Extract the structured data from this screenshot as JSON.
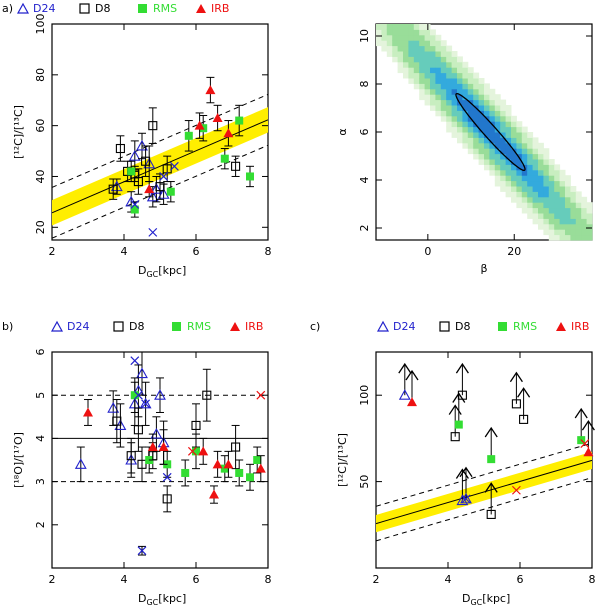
{
  "colors": {
    "d24": "#2222cc",
    "d8": "#000000",
    "rms": "#33dd33",
    "irb": "#ee1111",
    "band": "#ffee00",
    "frame": "#000000"
  },
  "legend": [
    {
      "key": "d24",
      "symbol": "triangle-open",
      "label": "D24"
    },
    {
      "key": "d8",
      "symbol": "square-open",
      "label": "D8"
    },
    {
      "key": "rms",
      "symbol": "square-filled",
      "label": "RMS"
    },
    {
      "key": "irb",
      "symbol": "triangle-filled",
      "label": "IRB"
    }
  ],
  "chart_data": [
    {
      "id": "a",
      "panel_label": "a)",
      "type": "scatter",
      "xlabel_main": "D",
      "xlabel_sub": "GC",
      "xlabel_unit": "[kpc]",
      "ylabel": "[¹²C]/[¹³C]",
      "xlim": [
        2,
        8
      ],
      "ylim": [
        15,
        100
      ],
      "xticks": [
        2,
        4,
        6,
        8
      ],
      "yticks": [
        20,
        40,
        60,
        80,
        100
      ],
      "fit": {
        "slope": 6.1,
        "intercept": 13.5,
        "band": 5,
        "dash": 10
      },
      "series": [
        {
          "name": "D24",
          "key": "d24",
          "symbol": "triangle-open",
          "points": [
            [
              3.8,
              36,
              3
            ],
            [
              4.2,
              30,
              4
            ],
            [
              4.3,
              48,
              6
            ],
            [
              4.5,
              52,
              5
            ],
            [
              4.7,
              45,
              7
            ],
            [
              4.8,
              32,
              4
            ],
            [
              4.9,
              35,
              5
            ],
            [
              5.1,
              33,
              4
            ]
          ]
        },
        {
          "name": "D8",
          "key": "d8",
          "symbol": "square-open",
          "points": [
            [
              3.7,
              35,
              4
            ],
            [
              3.9,
              51,
              5
            ],
            [
              4.1,
              42,
              4
            ],
            [
              4.3,
              41,
              3
            ],
            [
              4.4,
              38,
              5
            ],
            [
              4.6,
              46,
              6
            ],
            [
              4.8,
              60,
              7
            ],
            [
              5.0,
              36,
              5
            ],
            [
              5.2,
              43,
              5
            ],
            [
              7.1,
              44,
              4
            ]
          ]
        },
        {
          "name": "RMS",
          "key": "rms",
          "symbol": "square-filled",
          "points": [
            [
              4.2,
              42,
              4
            ],
            [
              4.3,
              27,
              3
            ],
            [
              5.3,
              34,
              4
            ],
            [
              5.8,
              56,
              6
            ],
            [
              6.2,
              59,
              5
            ],
            [
              6.8,
              47,
              4
            ],
            [
              7.2,
              62,
              6
            ],
            [
              7.5,
              40,
              4
            ]
          ]
        },
        {
          "name": "IRB",
          "key": "irb",
          "symbol": "triangle-filled",
          "points": [
            [
              4.7,
              35,
              3
            ],
            [
              6.1,
              60,
              5
            ],
            [
              6.4,
              74,
              5
            ],
            [
              6.6,
              63,
              5
            ],
            [
              6.9,
              57,
              5
            ]
          ]
        },
        {
          "name": "D24-cross",
          "key": "d24",
          "symbol": "x",
          "points": [
            [
              4.3,
              29,
              0
            ],
            [
              4.8,
              18,
              0
            ],
            [
              5.1,
              40,
              0
            ],
            [
              5.4,
              44,
              0
            ]
          ]
        }
      ]
    },
    {
      "id": "b",
      "panel_label": "b)",
      "type": "scatter",
      "xlabel_main": "D",
      "xlabel_sub": "GC",
      "xlabel_unit": "[kpc]",
      "ylabel": "[¹⁸O]/[¹⁷O]",
      "xlim": [
        2,
        8
      ],
      "ylim": [
        1,
        6
      ],
      "xticks": [
        2,
        4,
        6,
        8
      ],
      "yticks": [
        2,
        3,
        4,
        5,
        6
      ],
      "hlines": {
        "solid": 4,
        "dashed": [
          3,
          5
        ]
      },
      "series": [
        {
          "name": "D24",
          "key": "d24",
          "symbol": "triangle-open",
          "points": [
            [
              2.8,
              3.4,
              0.4
            ],
            [
              3.7,
              4.7,
              0.4
            ],
            [
              3.9,
              4.3,
              0.5
            ],
            [
              4.2,
              3.5,
              0.4
            ],
            [
              4.3,
              4.8,
              0.5
            ],
            [
              4.4,
              5.1,
              0.6
            ],
            [
              4.5,
              5.5,
              0.5
            ],
            [
              4.6,
              4.8,
              0.5
            ],
            [
              4.9,
              4.1,
              0.4
            ],
            [
              5.0,
              5.0,
              0.4
            ],
            [
              5.1,
              3.9,
              0.5
            ]
          ]
        },
        {
          "name": "D8",
          "key": "d8",
          "symbol": "square-open",
          "points": [
            [
              3.8,
              4.4,
              0.5
            ],
            [
              4.2,
              3.6,
              0.4
            ],
            [
              4.4,
              4.2,
              0.5
            ],
            [
              4.5,
              3.4,
              0.4
            ],
            [
              4.8,
              3.6,
              0.3
            ],
            [
              5.2,
              2.6,
              0.3
            ],
            [
              6.0,
              4.3,
              0.5
            ],
            [
              6.3,
              5.0,
              0.6
            ],
            [
              7.1,
              3.8,
              0.5
            ]
          ]
        },
        {
          "name": "RMS",
          "key": "rms",
          "symbol": "square-filled",
          "points": [
            [
              4.3,
              5.0,
              0.4
            ],
            [
              4.7,
              3.5,
              0.3
            ],
            [
              5.2,
              3.4,
              0.3
            ],
            [
              5.7,
              3.2,
              0.3
            ],
            [
              6.0,
              3.7,
              0.4
            ],
            [
              6.8,
              3.3,
              0.3
            ],
            [
              7.2,
              3.2,
              0.3
            ],
            [
              7.5,
              3.1,
              0.3
            ],
            [
              7.7,
              3.5,
              0.3
            ]
          ]
        },
        {
          "name": "IRB",
          "key": "irb",
          "symbol": "triangle-filled",
          "points": [
            [
              3.0,
              4.6,
              0.3
            ],
            [
              4.8,
              3.8,
              0.3
            ],
            [
              5.1,
              3.8,
              0.4
            ],
            [
              6.2,
              3.7,
              0.3
            ],
            [
              6.5,
              2.7,
              0.2
            ],
            [
              6.6,
              3.4,
              0.3
            ],
            [
              6.9,
              3.4,
              0.3
            ],
            [
              7.8,
              3.3,
              0.3
            ]
          ]
        },
        {
          "name": "D24-cross",
          "key": "d24",
          "symbol": "x",
          "points": [
            [
              4.3,
              5.8,
              0
            ],
            [
              4.4,
              5.0,
              0
            ],
            [
              4.6,
              4.8,
              0
            ],
            [
              4.5,
              1.4,
              0.1
            ],
            [
              5.2,
              3.1,
              0
            ]
          ]
        },
        {
          "name": "IRB-cross",
          "key": "irb",
          "symbol": "x",
          "points": [
            [
              5.9,
              3.7,
              0
            ],
            [
              7.8,
              5.0,
              0
            ]
          ]
        }
      ]
    },
    {
      "id": "c",
      "panel_label": "c)",
      "type": "scatter",
      "xlabel_main": "D",
      "xlabel_sub": "GC",
      "xlabel_unit": "[kpc]",
      "ylabel": "[¹²C]/[¹³C]",
      "xlim": [
        2,
        8
      ],
      "ylim": [
        0,
        125
      ],
      "xticks": [
        2,
        4,
        6,
        8
      ],
      "yticks": [
        50,
        100
      ],
      "fit": {
        "slope": 6.1,
        "intercept": 13.5,
        "band": 5,
        "dash": 10
      },
      "lower_limit_arrow": 18,
      "series": [
        {
          "name": "D24",
          "key": "d24",
          "symbol": "triangle-open",
          "points": [
            [
              2.8,
              100,
              0
            ],
            [
              4.4,
              39,
              0
            ],
            [
              4.5,
              40,
              0
            ]
          ],
          "lower_limits": true
        },
        {
          "name": "D8",
          "key": "d8",
          "symbol": "square-open",
          "points": [
            [
              4.2,
              76,
              0
            ],
            [
              4.4,
              100,
              0
            ],
            [
              5.2,
              31,
              0
            ],
            [
              5.9,
              95,
              0
            ],
            [
              6.1,
              86,
              0
            ]
          ],
          "lower_limits": true
        },
        {
          "name": "RMS",
          "key": "rms",
          "symbol": "square-filled",
          "points": [
            [
              4.3,
              83,
              0
            ],
            [
              5.2,
              63,
              0
            ],
            [
              7.7,
              74,
              0
            ]
          ],
          "lower_limits": true
        },
        {
          "name": "IRB",
          "key": "irb",
          "symbol": "triangle-filled",
          "points": [
            [
              3.0,
              96,
              0
            ],
            [
              7.9,
              67,
              0
            ]
          ],
          "lower_limits": true
        },
        {
          "name": "cross",
          "key": "irb",
          "symbol": "x",
          "points": [
            [
              5.9,
              45,
              0
            ],
            [
              7.8,
              72,
              0
            ]
          ]
        },
        {
          "name": "cross-d24",
          "key": "d24",
          "symbol": "x",
          "points": [
            [
              4.5,
              40,
              0
            ]
          ]
        }
      ]
    },
    {
      "id": "d",
      "type": "heatmap",
      "xlabel": "β",
      "ylabel": "α",
      "xlim": [
        -12,
        38
      ],
      "ylim": [
        1.5,
        10.5
      ],
      "xticks": [
        0,
        20
      ],
      "yticks": [
        2,
        4,
        6,
        8,
        10
      ],
      "ellipse": {
        "center_beta": 14.5,
        "center_alpha": 6.0,
        "corr": -0.97,
        "sigma_beta": 8.0,
        "sigma_alpha": 1.6
      }
    }
  ]
}
